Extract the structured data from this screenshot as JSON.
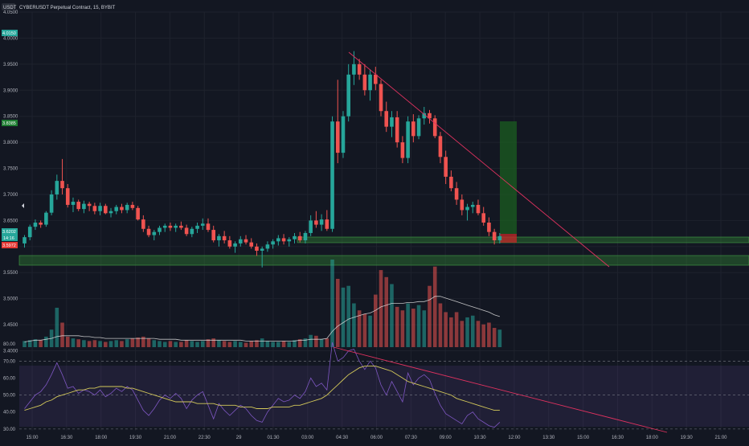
{
  "header": {
    "symbol_badge": "USDT",
    "title": "CYBERUSDT Perpetual Contract, 15, BYBIT"
  },
  "price_badges": {
    "top": "4.0150",
    "target": "3.8385",
    "current": "3.6202",
    "countdown": "14:16",
    "stop": "3.5972"
  },
  "price_axis_labels": [
    "4.0500",
    "4.0000",
    "3.9500",
    "3.9000",
    "3.8500",
    "3.8000",
    "3.7500",
    "3.7000",
    "3.6500",
    "3.6000",
    "3.5500",
    "3.5000",
    "3.4500",
    "3.4000"
  ],
  "rsi_axis_labels": [
    "80.00",
    "70.00",
    "60.00",
    "50.00",
    "40.00",
    "30.00"
  ],
  "time_axis_labels": [
    "15:00",
    "16:30",
    "18:00",
    "19:30",
    "21:00",
    "22:30",
    "29",
    "01:30",
    "03:00",
    "04:30",
    "06:00",
    "07:30",
    "09:00",
    "10:30",
    "12:00",
    "13:30",
    "15:00",
    "16:30",
    "18:00",
    "19:30",
    "21:00"
  ],
  "colors": {
    "background": "#131722",
    "bull": "#26a69a",
    "bear": "#ef5350",
    "grid": "#1e222d",
    "trendline": "#e0325f",
    "rsi_line": "#7e57c2",
    "rsi_ma": "#d4c95a",
    "volume_ma": "#e0e0e0",
    "zone": "#2e7d32"
  },
  "chart_data": {
    "type": "candlestick",
    "price_range": [
      3.39,
      4.05
    ],
    "candles": [
      [
        3.606,
        3.622,
        3.598,
        3.618
      ],
      [
        3.618,
        3.642,
        3.612,
        3.638
      ],
      [
        3.638,
        3.652,
        3.632,
        3.646
      ],
      [
        3.646,
        3.65,
        3.636,
        3.642
      ],
      [
        3.642,
        3.668,
        3.638,
        3.665
      ],
      [
        3.665,
        3.708,
        3.66,
        3.7
      ],
      [
        3.7,
        3.738,
        3.69,
        3.726
      ],
      [
        3.726,
        3.768,
        3.7,
        3.712
      ],
      [
        3.712,
        3.72,
        3.675,
        3.68
      ],
      [
        3.68,
        3.694,
        3.666,
        3.686
      ],
      [
        3.686,
        3.69,
        3.668,
        3.672
      ],
      [
        3.672,
        3.688,
        3.664,
        3.682
      ],
      [
        3.682,
        3.686,
        3.668,
        3.678
      ],
      [
        3.678,
        3.684,
        3.662,
        3.668
      ],
      [
        3.668,
        3.684,
        3.66,
        3.678
      ],
      [
        3.678,
        3.682,
        3.662,
        3.664
      ],
      [
        3.664,
        3.674,
        3.656,
        3.668
      ],
      [
        3.668,
        3.68,
        3.662,
        3.676
      ],
      [
        3.676,
        3.682,
        3.664,
        3.67
      ],
      [
        3.67,
        3.684,
        3.664,
        3.68
      ],
      [
        3.68,
        3.686,
        3.67,
        3.674
      ],
      [
        3.674,
        3.678,
        3.65,
        3.652
      ],
      [
        3.652,
        3.66,
        3.628,
        3.634
      ],
      [
        3.634,
        3.64,
        3.618,
        3.622
      ],
      [
        3.622,
        3.632,
        3.612,
        3.628
      ],
      [
        3.628,
        3.64,
        3.622,
        3.636
      ],
      [
        3.636,
        3.644,
        3.628,
        3.64
      ],
      [
        3.64,
        3.646,
        3.63,
        3.636
      ],
      [
        3.636,
        3.644,
        3.628,
        3.64
      ],
      [
        3.64,
        3.648,
        3.632,
        3.636
      ],
      [
        3.636,
        3.642,
        3.62,
        3.624
      ],
      [
        3.624,
        3.638,
        3.618,
        3.634
      ],
      [
        3.634,
        3.646,
        3.626,
        3.64
      ],
      [
        3.64,
        3.654,
        3.632,
        3.644
      ],
      [
        3.644,
        3.654,
        3.628,
        3.632
      ],
      [
        3.632,
        3.64,
        3.608,
        3.612
      ],
      [
        3.612,
        3.624,
        3.6,
        3.62
      ],
      [
        3.62,
        3.63,
        3.606,
        3.612
      ],
      [
        3.612,
        3.62,
        3.596,
        3.6
      ],
      [
        3.6,
        3.61,
        3.588,
        3.606
      ],
      [
        3.606,
        3.62,
        3.6,
        3.614
      ],
      [
        3.614,
        3.622,
        3.604,
        3.608
      ],
      [
        3.608,
        3.616,
        3.596,
        3.6
      ],
      [
        3.6,
        3.606,
        3.582,
        3.592
      ],
      [
        3.592,
        3.6,
        3.56,
        3.596
      ],
      [
        3.596,
        3.61,
        3.59,
        3.604
      ],
      [
        3.604,
        3.614,
        3.596,
        3.61
      ],
      [
        3.61,
        3.622,
        3.602,
        3.616
      ],
      [
        3.616,
        3.624,
        3.604,
        3.61
      ],
      [
        3.61,
        3.618,
        3.6,
        3.614
      ],
      [
        3.614,
        3.626,
        3.606,
        3.62
      ],
      [
        3.62,
        3.628,
        3.608,
        3.612
      ],
      [
        3.612,
        3.63,
        3.606,
        3.626
      ],
      [
        3.626,
        3.66,
        3.62,
        3.65
      ],
      [
        3.65,
        3.668,
        3.636,
        3.642
      ],
      [
        3.642,
        3.662,
        3.63,
        3.652
      ],
      [
        3.652,
        3.67,
        3.63,
        3.634
      ],
      [
        3.634,
        3.85,
        3.628,
        3.84
      ],
      [
        3.84,
        3.92,
        3.76,
        3.78
      ],
      [
        3.78,
        3.86,
        3.77,
        3.85
      ],
      [
        3.85,
        3.95,
        3.84,
        3.93
      ],
      [
        3.93,
        3.975,
        3.91,
        3.95
      ],
      [
        3.95,
        3.96,
        3.92,
        3.93
      ],
      [
        3.93,
        3.95,
        3.89,
        3.9
      ],
      [
        3.9,
        3.94,
        3.88,
        3.93
      ],
      [
        3.93,
        3.945,
        3.9,
        3.912
      ],
      [
        3.912,
        3.92,
        3.85,
        3.86
      ],
      [
        3.86,
        3.878,
        3.82,
        3.83
      ],
      [
        3.83,
        3.86,
        3.81,
        3.848
      ],
      [
        3.848,
        3.86,
        3.79,
        3.8
      ],
      [
        3.8,
        3.812,
        3.76,
        3.77
      ],
      [
        3.77,
        3.85,
        3.76,
        3.84
      ],
      [
        3.84,
        3.854,
        3.8,
        3.812
      ],
      [
        3.812,
        3.852,
        3.806,
        3.846
      ],
      [
        3.846,
        3.868,
        3.834,
        3.856
      ],
      [
        3.856,
        3.862,
        3.836,
        3.846
      ],
      [
        3.846,
        3.852,
        3.808,
        3.812
      ],
      [
        3.812,
        3.82,
        3.76,
        3.772
      ],
      [
        3.772,
        3.784,
        3.72,
        3.734
      ],
      [
        3.734,
        3.746,
        3.706,
        3.712
      ],
      [
        3.712,
        3.724,
        3.68,
        3.69
      ],
      [
        3.69,
        3.7,
        3.66,
        3.67
      ],
      [
        3.67,
        3.682,
        3.65,
        3.676
      ],
      [
        3.676,
        3.686,
        3.664,
        3.68
      ],
      [
        3.68,
        3.69,
        3.66,
        3.664
      ],
      [
        3.664,
        3.676,
        3.64,
        3.646
      ],
      [
        3.646,
        3.656,
        3.62,
        3.628
      ],
      [
        3.628,
        3.634,
        3.604,
        3.612
      ],
      [
        3.612,
        3.626,
        3.606,
        3.62
      ]
    ],
    "volume": [
      0.07,
      0.08,
      0.09,
      0.08,
      0.12,
      0.2,
      0.45,
      0.28,
      0.12,
      0.1,
      0.09,
      0.08,
      0.07,
      0.08,
      0.07,
      0.06,
      0.07,
      0.08,
      0.07,
      0.09,
      0.1,
      0.11,
      0.12,
      0.1,
      0.08,
      0.07,
      0.06,
      0.07,
      0.06,
      0.06,
      0.08,
      0.07,
      0.06,
      0.07,
      0.09,
      0.1,
      0.08,
      0.07,
      0.06,
      0.07,
      0.06,
      0.05,
      0.07,
      0.08,
      0.1,
      0.07,
      0.06,
      0.06,
      0.07,
      0.06,
      0.08,
      0.09,
      0.1,
      0.14,
      0.13,
      0.09,
      0.1,
      1.0,
      0.78,
      0.68,
      0.7,
      0.5,
      0.42,
      0.38,
      0.36,
      0.6,
      0.88,
      0.8,
      0.72,
      0.46,
      0.42,
      0.5,
      0.44,
      0.48,
      0.42,
      0.7,
      0.92,
      0.5,
      0.4,
      0.34,
      0.4,
      0.3,
      0.34,
      0.36,
      0.3,
      0.26,
      0.28,
      0.22,
      0.2
    ],
    "rsi_range": [
      29,
      81
    ],
    "rsi": [
      42,
      46,
      50,
      52,
      56,
      62,
      69,
      62,
      54,
      55,
      51,
      53,
      52,
      50,
      53,
      49,
      51,
      54,
      52,
      55,
      53,
      47,
      41,
      38,
      42,
      47,
      50,
      48,
      51,
      48,
      42,
      47,
      50,
      52,
      44,
      36,
      45,
      41,
      38,
      41,
      44,
      42,
      38,
      35,
      34,
      40,
      44,
      48,
      46,
      47,
      50,
      48,
      52,
      60,
      55,
      57,
      53,
      81,
      70,
      72,
      76,
      77,
      70,
      65,
      70,
      66,
      56,
      50,
      58,
      52,
      46,
      63,
      56,
      60,
      62,
      59,
      51,
      44,
      39,
      37,
      35,
      33,
      38,
      40,
      36,
      34,
      32,
      31,
      34
    ],
    "rsi_ma": [
      41,
      42,
      43,
      44,
      46,
      47,
      49,
      50,
      51,
      52,
      53,
      53,
      54,
      54,
      55,
      55,
      55,
      55,
      55,
      54,
      54,
      53,
      52,
      51,
      50,
      49,
      48,
      47,
      46,
      46,
      46,
      46,
      45,
      45,
      45,
      45,
      44,
      44,
      44,
      44,
      43,
      43,
      43,
      42,
      42,
      42,
      43,
      43,
      43,
      43,
      44,
      44,
      45,
      46,
      47,
      48,
      50,
      53,
      56,
      59,
      62,
      64,
      66,
      67,
      67,
      67,
      66,
      65,
      64,
      62,
      60,
      58,
      57,
      56,
      55,
      54,
      53,
      52,
      51,
      50,
      48,
      47,
      46,
      45,
      44,
      43,
      42,
      41,
      41
    ],
    "volume_ma": [
      0.06,
      0.07,
      0.08,
      0.08,
      0.09,
      0.1,
      0.12,
      0.13,
      0.13,
      0.13,
      0.13,
      0.12,
      0.12,
      0.11,
      0.11,
      0.1,
      0.1,
      0.1,
      0.1,
      0.1,
      0.1,
      0.1,
      0.1,
      0.1,
      0.1,
      0.09,
      0.09,
      0.09,
      0.09,
      0.08,
      0.08,
      0.08,
      0.08,
      0.08,
      0.08,
      0.08,
      0.08,
      0.08,
      0.08,
      0.08,
      0.08,
      0.07,
      0.07,
      0.07,
      0.07,
      0.07,
      0.07,
      0.07,
      0.07,
      0.07,
      0.07,
      0.08,
      0.08,
      0.09,
      0.09,
      0.09,
      0.1,
      0.18,
      0.24,
      0.28,
      0.32,
      0.34,
      0.36,
      0.38,
      0.39,
      0.42,
      0.46,
      0.48,
      0.5,
      0.5,
      0.5,
      0.51,
      0.51,
      0.52,
      0.52,
      0.54,
      0.58,
      0.58,
      0.56,
      0.54,
      0.52,
      0.5,
      0.48,
      0.46,
      0.44,
      0.42,
      0.4,
      0.37,
      0.35
    ]
  }
}
